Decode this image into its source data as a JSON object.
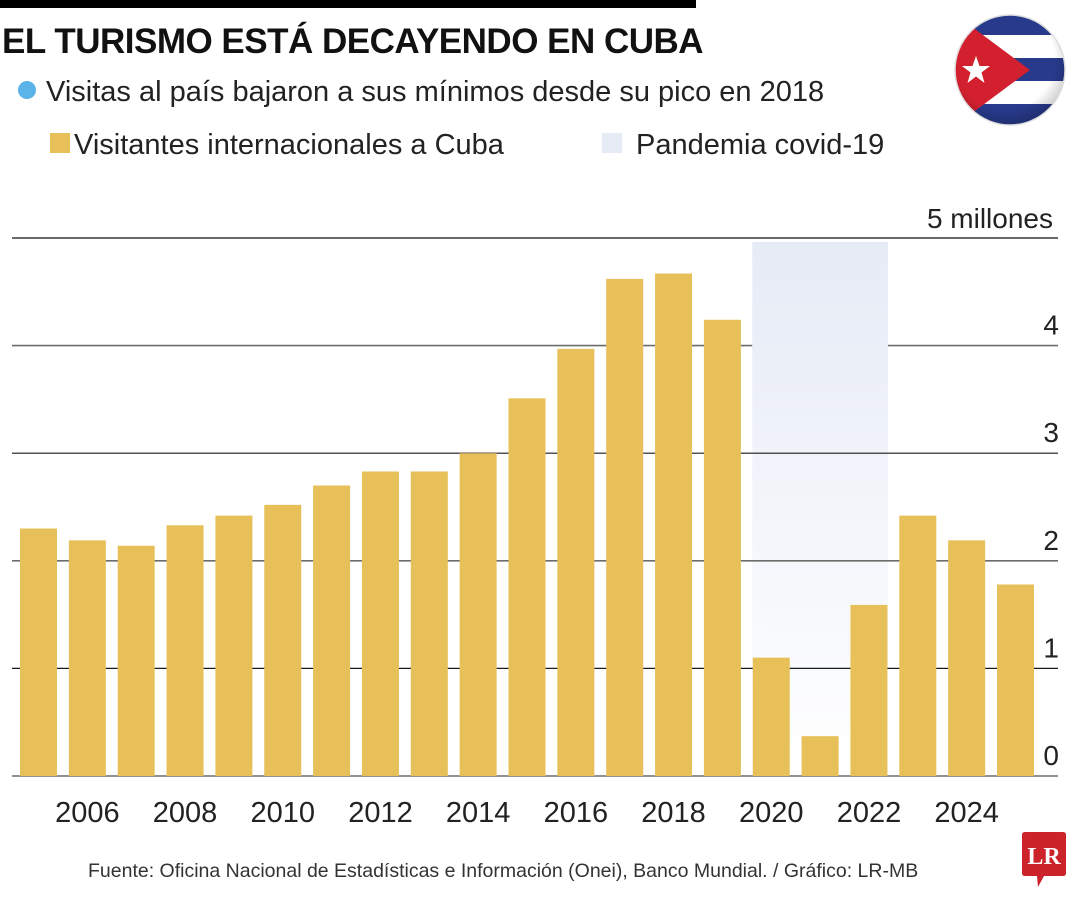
{
  "header": {
    "title": "EL TURISMO ESTÁ DECAYENDO EN CUBA",
    "subtitle": "Visitas al país bajaron a sus mínimos desde su pico en 2018",
    "subtitle_bullet_color": "#5bb4e8"
  },
  "legend": {
    "items": [
      {
        "label": "Visitantes internacionales a Cuba",
        "color": "#e8c05a"
      },
      {
        "label": "Pandemia covid-19",
        "color": "#e6ebf6"
      }
    ]
  },
  "flag": {
    "name": "Cuba",
    "icon": "cuba-flag-icon",
    "colors": {
      "blue": "#283a8c",
      "red": "#d3202f",
      "white": "#ffffff"
    }
  },
  "chart_data": {
    "type": "bar",
    "title": "EL TURISMO ESTÁ DECAYENDO EN CUBA",
    "subtitle": "Visitas al país bajaron a sus mínimos desde su pico en 2018",
    "xlabel": "",
    "ylabel": "millones",
    "categories": [
      "2005",
      "2006",
      "2007",
      "2008",
      "2009",
      "2010",
      "2011",
      "2012",
      "2013",
      "2014",
      "2015",
      "2016",
      "2017",
      "2018",
      "2019",
      "2020",
      "2021",
      "2022",
      "2023",
      "2024",
      "2025"
    ],
    "series": [
      {
        "name": "Visitantes internacionales a Cuba",
        "color": "#e8c05a",
        "values": [
          2.3,
          2.19,
          2.14,
          2.33,
          2.42,
          2.52,
          2.7,
          2.83,
          2.83,
          3.0,
          3.51,
          3.97,
          4.62,
          4.67,
          4.24,
          1.1,
          0.37,
          1.59,
          2.42,
          2.19,
          1.78
        ]
      }
    ],
    "highlight_band": {
      "label": "Pandemia covid-19",
      "from": "2020",
      "to": "2022",
      "color": "#e6ebf6"
    },
    "ylim": [
      0,
      5
    ],
    "yticks": [
      {
        "value": 0,
        "label": "0"
      },
      {
        "value": 1,
        "label": "1"
      },
      {
        "value": 2,
        "label": "2"
      },
      {
        "value": 3,
        "label": "3"
      },
      {
        "value": 4,
        "label": "4"
      },
      {
        "value": 5,
        "label": "5 millones"
      }
    ],
    "xtick_labels": [
      "2006",
      "2008",
      "2010",
      "2012",
      "2014",
      "2016",
      "2018",
      "2020",
      "2022",
      "2024"
    ],
    "y_axis_position": "right",
    "grid": true,
    "legend_position": "top-left"
  },
  "footer": {
    "source": "Fuente: Oficina Nacional de Estadísticas e Información (Onei), Banco Mundial. / Gráfico: LR-MB",
    "logo_text": "LR",
    "logo_color": "#cc2229"
  }
}
